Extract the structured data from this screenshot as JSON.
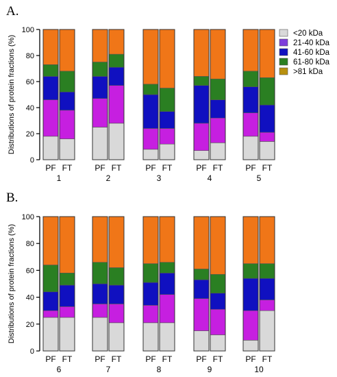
{
  "chart_data": [
    {
      "type": "bar",
      "stacked": true,
      "panel_label": "A.",
      "ylabel": "Distributions of protein fractions (%)",
      "ylim": [
        0,
        100
      ],
      "yticks": [
        "0",
        "20",
        "40",
        "60",
        "80",
        "100"
      ],
      "categories": [
        "PF",
        "FT",
        "PF",
        "FT",
        "PF",
        "FT",
        "PF",
        "FT",
        "PF",
        "FT"
      ],
      "groups": [
        "1",
        "2",
        "3",
        "4",
        "5"
      ],
      "series": [
        {
          "name": "<20 kDa",
          "values": [
            18,
            16,
            25,
            28,
            8,
            12,
            7,
            13,
            18,
            14
          ]
        },
        {
          "name": "21-40 kDa",
          "values": [
            28,
            22,
            22,
            29,
            16,
            12,
            21,
            19,
            18,
            7
          ]
        },
        {
          "name": "41-60 kDa",
          "values": [
            18,
            14,
            17,
            14,
            26,
            13,
            29,
            14,
            20,
            21
          ]
        },
        {
          "name": "61-80 kDa",
          "values": [
            9,
            16,
            11,
            10,
            8,
            18,
            7,
            16,
            12,
            21
          ]
        },
        {
          "name": ">81 kDa",
          "values": [
            27,
            32,
            25,
            19,
            42,
            45,
            36,
            38,
            32,
            37
          ]
        }
      ]
    },
    {
      "type": "bar",
      "stacked": true,
      "panel_label": "B.",
      "ylabel": "Distributions of protein fractions (%)",
      "ylim": [
        0,
        100
      ],
      "yticks": [
        "0",
        "20",
        "40",
        "60",
        "80",
        "100"
      ],
      "categories": [
        "PF",
        "FT",
        "PF",
        "FT",
        "PF",
        "FT",
        "PF",
        "FT",
        "PF",
        "FT"
      ],
      "groups": [
        "6",
        "7",
        "8",
        "9",
        "10"
      ],
      "series": [
        {
          "name": "<20 kDa",
          "values": [
            25,
            25,
            25,
            21,
            21,
            21,
            15,
            12,
            8,
            30
          ]
        },
        {
          "name": "21-40 kDa",
          "values": [
            5,
            8,
            10,
            14,
            13,
            21,
            24,
            19,
            22,
            8
          ]
        },
        {
          "name": "41-60 kDa",
          "values": [
            14,
            16,
            15,
            14,
            17,
            16,
            14,
            12,
            24,
            16
          ]
        },
        {
          "name": "61-80 kDa",
          "values": [
            20,
            9,
            16,
            13,
            14,
            8,
            8,
            14,
            11,
            11
          ]
        },
        {
          "name": ">81 kDa",
          "values": [
            36,
            42,
            34,
            38,
            35,
            34,
            39,
            43,
            35,
            35
          ]
        }
      ]
    }
  ],
  "legend": [
    {
      "label": "<20 kDa",
      "color": "#d9d9d9"
    },
    {
      "label": "21-40 kDa",
      "color": "#7d3ddb"
    },
    {
      "label": "41-60 kDa",
      "color": "#1010c0"
    },
    {
      "label": "61-80 kDa",
      "color": "#2a7f22"
    },
    {
      "label": ">81 kDa",
      "color": "#b8900e"
    }
  ],
  "colors": {
    "bar_fill": [
      "#d9d9d9",
      "#c61fe0",
      "#1010c0",
      "#2a7f22",
      "#f07618"
    ],
    "axis": "#000000"
  }
}
